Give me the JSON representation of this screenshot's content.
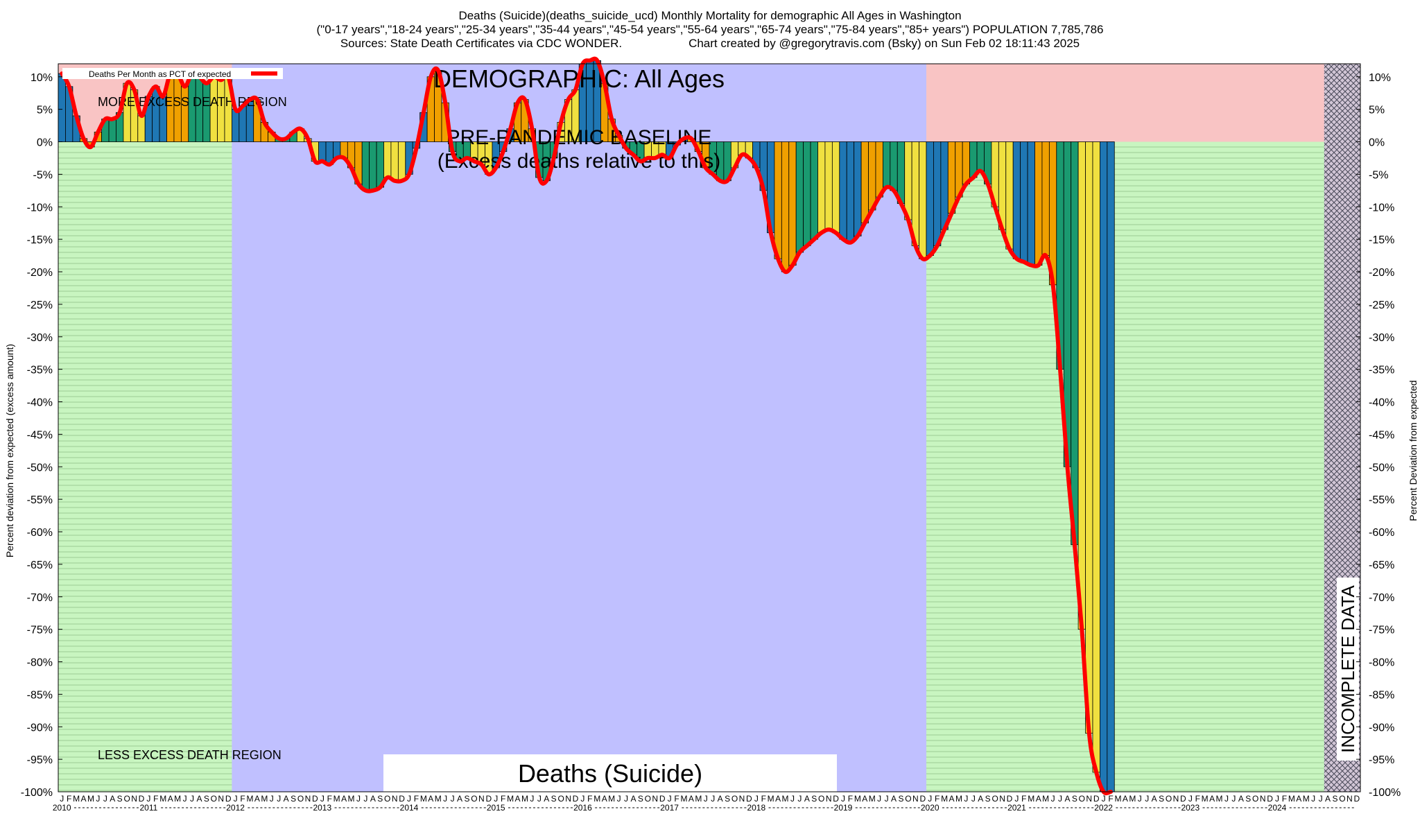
{
  "header": {
    "line1": "Deaths (Suicide)(deaths_suicide_ucd) Monthly Mortality for demographic All Ages in Washington",
    "line2": "(\"0-17 years\",\"18-24 years\",\"25-34 years\",\"35-44 years\",\"45-54 years\",\"55-64 years\",\"65-74 years\",\"75-84 years\",\"85+ years\") POPULATION 7,785,786",
    "line3_left": "Sources: State Death Certificates via CDC WONDER.",
    "line3_right": "Chart created by @gregorytravis.com (Bsky) on Sun Feb 02 18:11:43 2025"
  },
  "chart_data": {
    "type": "bar",
    "title": "Deaths (Suicide)",
    "demographic_label": "DEMOGRAPHIC: All Ages",
    "baseline_label_1": "PRE-PANDEMIC BASELINE",
    "baseline_label_2": "(Excess deaths relative to this)",
    "more_region_label": "MORE EXCESS DEATH REGION",
    "less_region_label": "LESS EXCESS DEATH REGION",
    "incomplete_label": "INCOMPLETE DATA",
    "legend": "Deaths Per Month as PCT of expected",
    "ylabel_left": "Percent deviation from expected (excess amount)",
    "ylabel_right": "Percent Deviation from expected",
    "ylim": [
      -100,
      12
    ],
    "yticks": [
      10,
      5,
      0,
      -5,
      -10,
      -15,
      -20,
      -25,
      -30,
      -35,
      -40,
      -45,
      -50,
      -55,
      -60,
      -65,
      -70,
      -75,
      -80,
      -85,
      -90,
      -95,
      -100
    ],
    "ytick_suffix": "%",
    "month_letters": [
      "J",
      "F",
      "M",
      "A",
      "M",
      "J",
      "J",
      "A",
      "S",
      "O",
      "N",
      "D"
    ],
    "years": [
      "2010",
      "2011",
      "2012",
      "2013",
      "2014",
      "2015",
      "2016",
      "2017",
      "2018",
      "2019",
      "2020",
      "2021",
      "2022",
      "2023",
      "2024"
    ],
    "x_start": "2010-01",
    "incomplete_from": "2024-08",
    "region_colors": {
      "more": "#f9c4c4",
      "less": "#c8f5c0",
      "baseline": "#c0c0ff",
      "line": "#ff0000"
    },
    "quarter_colors": [
      "#1f77b4",
      "#f0a000",
      "#1a9a70",
      "#f0e040"
    ],
    "series": [
      {
        "name": "Deaths Per Month as PCT of expected",
        "values": [
          10.5,
          8.5,
          4.0,
          0.5,
          -0.8,
          1.5,
          3.5,
          3.5,
          4.5,
          9.0,
          8.0,
          4.0,
          7.0,
          8.5,
          7.0,
          10.5,
          10.5,
          8.5,
          10.5,
          10.0,
          9.0,
          10.0,
          9.5,
          10.0,
          5.0,
          5.5,
          6.5,
          6.5,
          3.0,
          1.5,
          0.5,
          0.5,
          1.5,
          2.0,
          0.5,
          -3.0,
          -3.0,
          -3.5,
          -2.5,
          -2.5,
          -4.0,
          -6.5,
          -7.5,
          -7.5,
          -7.0,
          -5.5,
          -6.0,
          -6.0,
          -5.0,
          -1.0,
          4.5,
          10.0,
          11.0,
          6.0,
          -1.5,
          -3.0,
          -2.5,
          -3.0,
          -3.5,
          -5.0,
          -4.0,
          -1.5,
          2.0,
          6.0,
          6.5,
          2.0,
          -5.5,
          -6.0,
          -2.5,
          3.0,
          6.5,
          8.0,
          12.0,
          12.5,
          12.5,
          9.0,
          3.5,
          1.0,
          -1.0,
          -2.0,
          -3.0,
          -2.5,
          -2.5,
          -2.0,
          -2.5,
          -0.5,
          0.5,
          0.5,
          -1.5,
          -4.0,
          -5.0,
          -6.0,
          -6.0,
          -4.0,
          -2.0,
          -2.5,
          -4.0,
          -7.5,
          -14.0,
          -18.0,
          -20.0,
          -19.0,
          -17.0,
          -16.0,
          -15.0,
          -14.0,
          -13.5,
          -14.0,
          -15.0,
          -15.5,
          -14.5,
          -12.5,
          -10.5,
          -8.5,
          -7.0,
          -7.5,
          -9.5,
          -12.0,
          -16.0,
          -18.0,
          -17.5,
          -16.0,
          -13.5,
          -11.0,
          -8.5,
          -6.5,
          -5.5,
          -4.5,
          -6.5,
          -10.0,
          -13.5,
          -16.5,
          -18.0,
          -18.5,
          -19.0,
          -19.0,
          -17.5,
          -22.0,
          -35.0,
          -50.0,
          -62.0,
          -75.0,
          -91.0,
          -97.0,
          -100.0,
          -100.0
        ]
      }
    ]
  }
}
